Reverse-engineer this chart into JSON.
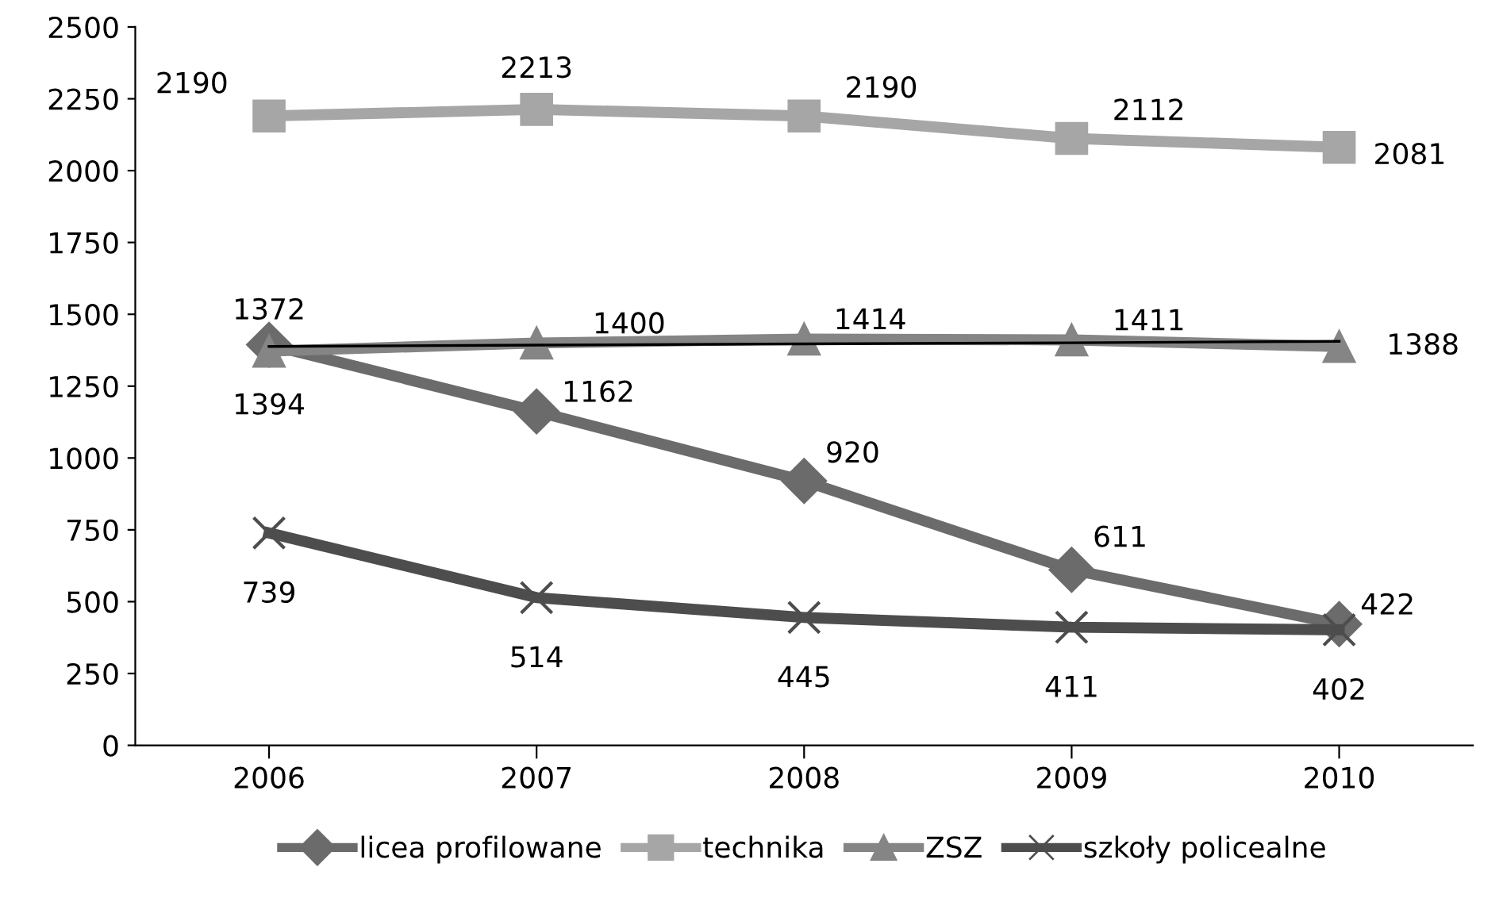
{
  "chart_data": {
    "type": "line",
    "categories": [
      "2006",
      "2007",
      "2008",
      "2009",
      "2010"
    ],
    "series": [
      {
        "name": "licea profilowane",
        "color": "#6b6b6b",
        "marker": "diamond",
        "values": [
          1394,
          1162,
          920,
          611,
          422
        ],
        "value_labels": [
          "1394",
          "1162",
          "920",
          "611",
          "422"
        ]
      },
      {
        "name": "technika",
        "color": "#a6a6a6",
        "marker": "square",
        "values": [
          2190,
          2213,
          2190,
          2112,
          2081
        ],
        "value_labels": [
          "2190",
          "2213",
          "2190",
          "2112",
          "2081"
        ]
      },
      {
        "name": "ZSZ",
        "color": "#858585",
        "marker": "triangle",
        "values": [
          1372,
          1400,
          1414,
          1411,
          1388
        ],
        "value_labels": [
          "1372",
          "1400",
          "1414",
          "1411",
          "1388"
        ]
      },
      {
        "name": "szkoły policealne",
        "color": "#4d4d4d",
        "marker": "cross",
        "values": [
          739,
          514,
          445,
          411,
          402
        ],
        "value_labels": [
          "739",
          "514",
          "445",
          "411",
          "402"
        ]
      },
      {
        "type": "line",
        "color": "#000000",
        "marker": "none",
        "values": [
          1388,
          1393,
          1397,
          1401,
          1406
        ]
      }
    ],
    "ylim": [
      0,
      2500
    ],
    "yticks": [
      0,
      250,
      500,
      750,
      1000,
      1250,
      1500,
      1750,
      2000,
      2250,
      2500
    ],
    "grid": false,
    "legend": "bottom"
  }
}
